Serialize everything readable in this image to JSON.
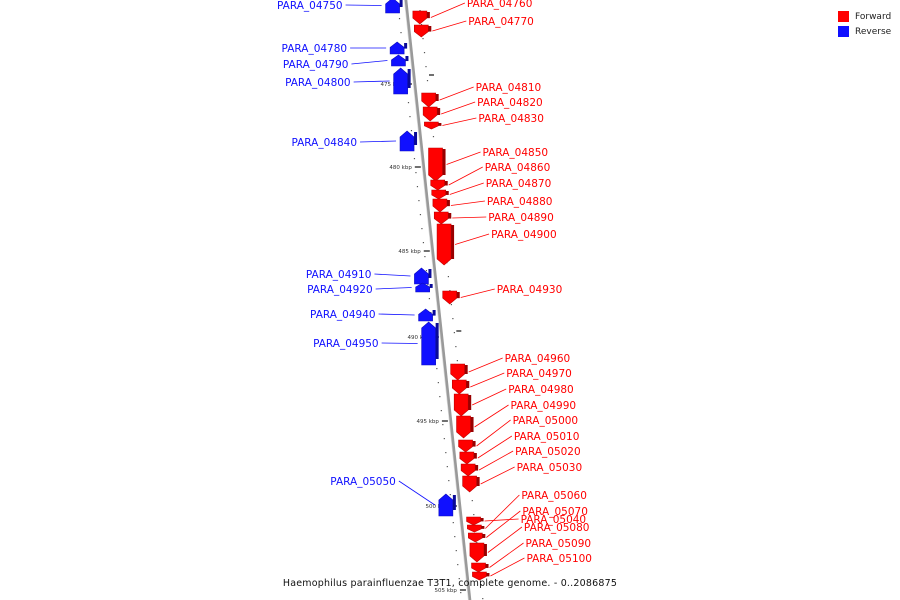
{
  "colors": {
    "forward": "#ff0000",
    "reverse": "#1010ff",
    "backbone": "#9a9a9a"
  },
  "legend": [
    {
      "label": "Forward",
      "strand": "forward"
    },
    {
      "label": "Reverse",
      "strand": "reverse"
    }
  ],
  "caption": "Haemophilus parainfluenzae T3T1, complete genome. - 0..2086875",
  "axis": {
    "ticks": [
      "475 kbp",
      "480 kbp",
      "485 kbp",
      "490 kbp",
      "495 kbp",
      "500 kbp",
      "505 kbp"
    ]
  },
  "genes": [
    {
      "name": "PARA_04750",
      "strand": "reverse"
    },
    {
      "name": "PARA_04760",
      "strand": "forward"
    },
    {
      "name": "PARA_04770",
      "strand": "forward"
    },
    {
      "name": "PARA_04780",
      "strand": "reverse"
    },
    {
      "name": "PARA_04790",
      "strand": "reverse"
    },
    {
      "name": "PARA_04800",
      "strand": "reverse"
    },
    {
      "name": "PARA_04810",
      "strand": "forward"
    },
    {
      "name": "PARA_04820",
      "strand": "forward"
    },
    {
      "name": "PARA_04830",
      "strand": "forward"
    },
    {
      "name": "PARA_04840",
      "strand": "reverse"
    },
    {
      "name": "PARA_04850",
      "strand": "forward"
    },
    {
      "name": "PARA_04860",
      "strand": "forward"
    },
    {
      "name": "PARA_04870",
      "strand": "forward"
    },
    {
      "name": "PARA_04880",
      "strand": "forward"
    },
    {
      "name": "PARA_04890",
      "strand": "forward"
    },
    {
      "name": "PARA_04900",
      "strand": "forward"
    },
    {
      "name": "PARA_04910",
      "strand": "reverse"
    },
    {
      "name": "PARA_04920",
      "strand": "reverse"
    },
    {
      "name": "PARA_04930",
      "strand": "forward"
    },
    {
      "name": "PARA_04940",
      "strand": "reverse"
    },
    {
      "name": "PARA_04950",
      "strand": "reverse"
    },
    {
      "name": "PARA_04960",
      "strand": "forward"
    },
    {
      "name": "PARA_04970",
      "strand": "forward"
    },
    {
      "name": "PARA_04980",
      "strand": "forward"
    },
    {
      "name": "PARA_04990",
      "strand": "forward"
    },
    {
      "name": "PARA_05000",
      "strand": "forward"
    },
    {
      "name": "PARA_05010",
      "strand": "forward"
    },
    {
      "name": "PARA_05020",
      "strand": "forward"
    },
    {
      "name": "PARA_05030",
      "strand": "forward"
    },
    {
      "name": "PARA_05040",
      "strand": "forward"
    },
    {
      "name": "PARA_05050",
      "strand": "reverse"
    },
    {
      "name": "PARA_05060",
      "strand": "forward"
    },
    {
      "name": "PARA_05070",
      "strand": "forward"
    },
    {
      "name": "PARA_05080",
      "strand": "forward"
    },
    {
      "name": "PARA_05090",
      "strand": "forward"
    },
    {
      "name": "PARA_05100",
      "strand": "forward"
    }
  ]
}
